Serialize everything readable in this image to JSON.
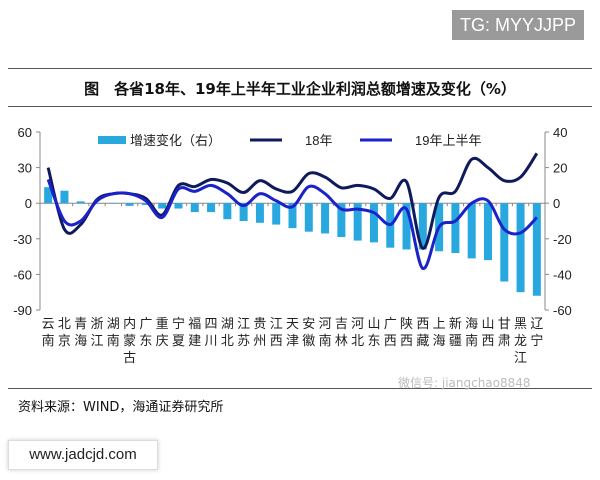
{
  "header": {
    "tag": "TG: MYYJJPP"
  },
  "title": "图　各省18年、19年上半年工业企业利润总额增速及变化（%）",
  "source": "资料来源：WIND，海通证券研究所",
  "watermark_wechat": "微信号: jiangchao8848",
  "watermark_site": "www.jadcjd.com",
  "colors": {
    "bars": "#29a8df",
    "line18": "#0f1a5c",
    "line19": "#1a22c8"
  },
  "chart_data": {
    "type": "bar+line",
    "categories": [
      "云南",
      "北京",
      "青海",
      "浙江",
      "湖南",
      "内蒙古",
      "广东",
      "重庆",
      "宁夏",
      "福建",
      "四川",
      "湖北",
      "江苏",
      "贵州",
      "江西",
      "天津",
      "安徽",
      "河南",
      "吉林",
      "河北",
      "山东",
      "广西",
      "陕西",
      "西藏",
      "上海",
      "新疆",
      "海南",
      "山西",
      "甘肃",
      "黑龙江",
      "辽宁"
    ],
    "left_axis": {
      "range": [
        -90,
        60
      ],
      "ticks": [
        "60",
        "30",
        "0",
        "-30",
        "-60",
        "-90"
      ]
    },
    "right_axis": {
      "range": [
        -60,
        40
      ],
      "ticks": [
        "40",
        "20",
        "0",
        "-20",
        "-40",
        "-60"
      ]
    },
    "series": [
      {
        "name": "增速变化（右）",
        "type": "bar",
        "axis": "right",
        "values": [
          9,
          7,
          1,
          0,
          0,
          -1.5,
          -1,
          -3,
          -3,
          -5,
          -5,
          -9,
          -10,
          -11,
          -12,
          -14,
          -16,
          -17,
          -19,
          -21,
          -22,
          -25,
          -26,
          -26,
          -27,
          -28,
          -31,
          -32,
          -44,
          -50,
          -52
        ]
      },
      {
        "name": "18年",
        "type": "line",
        "axis": "left",
        "values": [
          30,
          -22,
          -18,
          3,
          8,
          8,
          4,
          -10,
          15,
          14,
          20,
          17,
          9,
          19,
          12,
          10,
          25,
          22,
          13,
          15,
          12,
          4,
          18,
          -38,
          5,
          10,
          37,
          30,
          19,
          22,
          42
        ]
      },
      {
        "name": "19年上半年",
        "type": "line",
        "axis": "left",
        "values": [
          20,
          -15,
          -15,
          2,
          8,
          8,
          2,
          -12,
          12,
          10,
          15,
          8,
          -2,
          8,
          2,
          -3,
          14,
          8,
          -5,
          -5,
          -8,
          -18,
          -5,
          -55,
          -20,
          -15,
          0,
          2,
          -22,
          -25,
          -12
        ]
      }
    ],
    "legend_placement": "top"
  }
}
